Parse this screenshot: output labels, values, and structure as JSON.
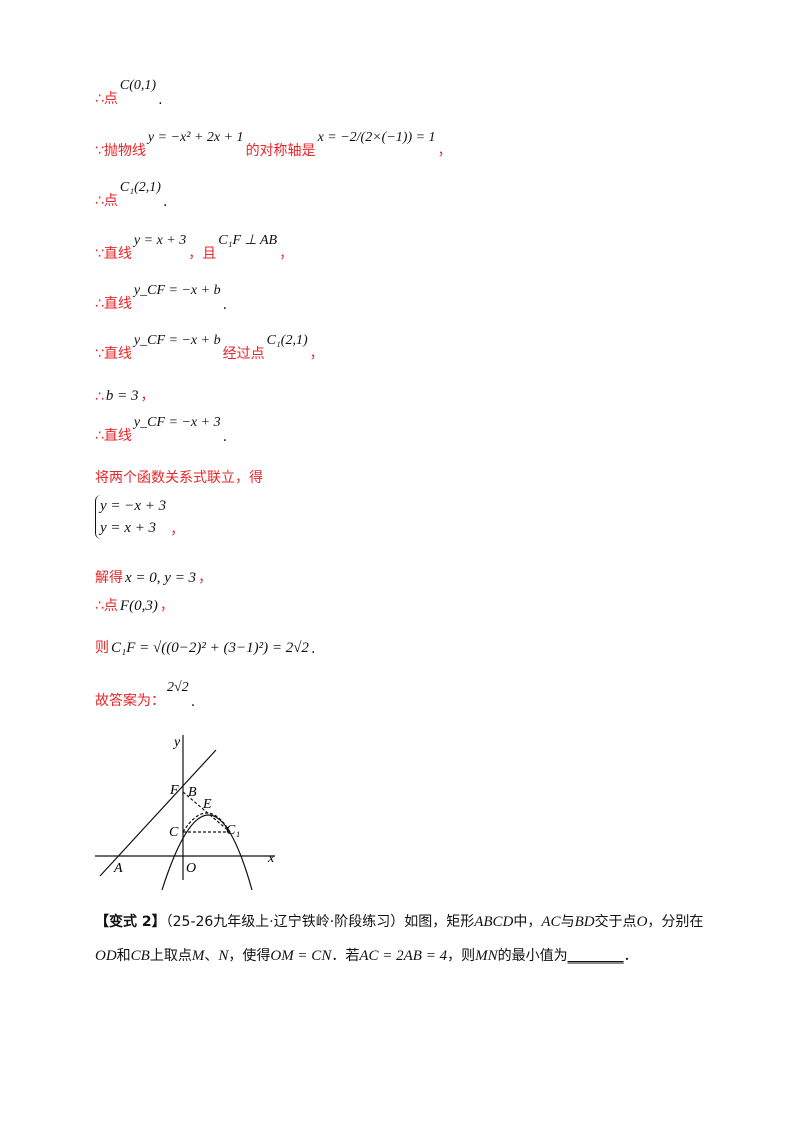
{
  "lines": [
    {
      "segments": [
        {
          "text": "∴点",
          "kind": "red"
        },
        {
          "text": "C(0,1)",
          "kind": "math"
        },
        {
          "text": ".",
          "kind": "dot"
        }
      ]
    },
    {
      "segments": [
        {
          "text": "∵抛物线",
          "kind": "red"
        },
        {
          "text": "y = −x² + 2x + 1",
          "kind": "math"
        },
        {
          "text": "的对称轴是",
          "kind": "red"
        },
        {
          "text": "x = −2/(2×(−1)) = 1",
          "kind": "math"
        },
        {
          "text": "，",
          "kind": "red"
        }
      ]
    },
    {
      "segments": [
        {
          "text": "∴点",
          "kind": "red"
        },
        {
          "text": "C₁(2,1)",
          "kind": "math"
        },
        {
          "text": ".",
          "kind": "dot"
        }
      ]
    },
    {
      "segments": [
        {
          "text": "∵直线",
          "kind": "red"
        },
        {
          "text": "y = x + 3",
          "kind": "math"
        },
        {
          "text": "，且",
          "kind": "red"
        },
        {
          "text": "C₁F ⊥ AB",
          "kind": "math"
        },
        {
          "text": "，",
          "kind": "red"
        }
      ]
    },
    {
      "segments": [
        {
          "text": "∴直线",
          "kind": "red"
        },
        {
          "text": "y_CF = −x + b",
          "kind": "math"
        },
        {
          "text": ".",
          "kind": "dot"
        }
      ]
    },
    {
      "segments": [
        {
          "text": "∵直线",
          "kind": "red"
        },
        {
          "text": "y_CF = −x + b",
          "kind": "math"
        },
        {
          "text": "经过点",
          "kind": "red"
        },
        {
          "text": "C₁(2,1)",
          "kind": "math"
        },
        {
          "text": "，",
          "kind": "red"
        }
      ]
    },
    {
      "segments": [
        {
          "text": "∴",
          "kind": "red"
        },
        {
          "text": "b = 3",
          "kind": "inline"
        },
        {
          "text": "，",
          "kind": "red"
        }
      ]
    },
    {
      "segments": [
        {
          "text": "∴直线",
          "kind": "red"
        },
        {
          "text": "y_CF = −x + 3",
          "kind": "math"
        },
        {
          "text": ".",
          "kind": "dot"
        }
      ]
    },
    {
      "segments": [
        {
          "text": "将两个函数关系式联立，得",
          "kind": "red"
        }
      ]
    },
    {
      "segments": [
        {
          "text": "y = −x + 3",
          "kind": "row"
        },
        {
          "text": "y = x + 3",
          "kind": "row"
        },
        {
          "text": "，",
          "kind": "red"
        }
      ]
    },
    {
      "segments": [
        {
          "text": "解得",
          "kind": "red"
        },
        {
          "text": "x = 0, y = 3",
          "kind": "inline"
        },
        {
          "text": "，",
          "kind": "red"
        }
      ]
    },
    {
      "segments": [
        {
          "text": "∴点",
          "kind": "red"
        },
        {
          "text": "F(0,3)",
          "kind": "inline"
        },
        {
          "text": "，",
          "kind": "red"
        }
      ]
    },
    {
      "segments": [
        {
          "text": "则",
          "kind": "red"
        },
        {
          "text": "C₁F = √((0−2)² + (3−1)²) = 2√2",
          "kind": "inline"
        },
        {
          "text": ".",
          "kind": "dot"
        }
      ]
    },
    {
      "segments": [
        {
          "text": "故答案为：",
          "kind": "red"
        },
        {
          "text": "2√2",
          "kind": "math"
        },
        {
          "text": ".",
          "kind": "dot"
        }
      ]
    }
  ],
  "figure": {
    "labels": [
      "y",
      "x",
      "F",
      "B",
      "E",
      "C",
      "C₁",
      "O",
      "A"
    ]
  },
  "problem": {
    "segments": [
      {
        "text": "【变式 2】",
        "kind": "bold"
      },
      {
        "text": "（25-26九年级上·辽宁铁岭·阶段练习）如图，矩形",
        "kind": "plain"
      },
      {
        "text": "ABCD",
        "kind": "it"
      },
      {
        "text": "中，",
        "kind": "plain"
      },
      {
        "text": "AC",
        "kind": "it"
      },
      {
        "text": "与",
        "kind": "plain"
      },
      {
        "text": "BD",
        "kind": "it"
      },
      {
        "text": "交于点",
        "kind": "plain"
      },
      {
        "text": "O",
        "kind": "it"
      },
      {
        "text": "，分别在",
        "kind": "plain"
      },
      {
        "text": "OD",
        "kind": "it"
      },
      {
        "text": "和",
        "kind": "plain"
      },
      {
        "text": "CB",
        "kind": "it"
      },
      {
        "text": "上取点",
        "kind": "plain"
      },
      {
        "text": "M",
        "kind": "it"
      },
      {
        "text": "、",
        "kind": "plain"
      },
      {
        "text": "N",
        "kind": "it"
      },
      {
        "text": "，使得",
        "kind": "plain"
      },
      {
        "text": "OM = CN",
        "kind": "it"
      },
      {
        "text": "．若",
        "kind": "plain"
      },
      {
        "text": "AC = 2AB = 4",
        "kind": "it"
      },
      {
        "text": "，则",
        "kind": "plain"
      },
      {
        "text": "MN",
        "kind": "it"
      },
      {
        "text": "的最小值为",
        "kind": "plain"
      },
      {
        "text": "________",
        "kind": "blank"
      },
      {
        "text": "．",
        "kind": "plain"
      }
    ]
  }
}
